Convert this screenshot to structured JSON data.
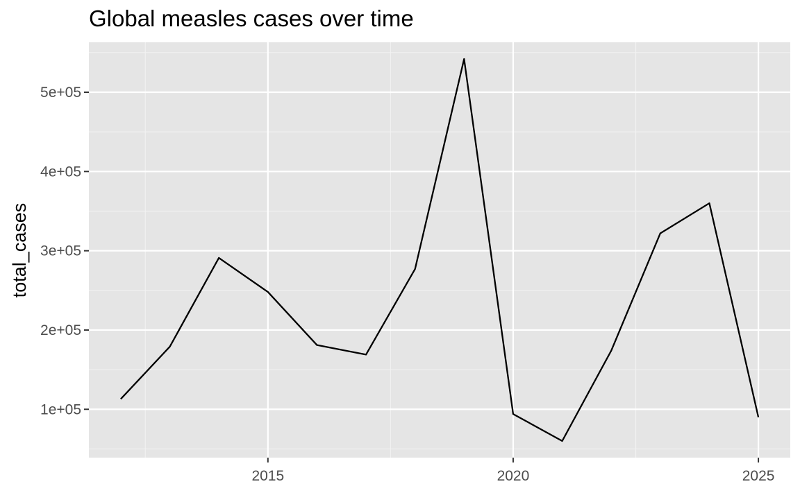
{
  "chart_data": {
    "type": "line",
    "title": "Global measles cases over time",
    "xlabel": "",
    "ylabel": "total_cases",
    "x": [
      2012,
      2013,
      2014,
      2015,
      2016,
      2017,
      2018,
      2019,
      2020,
      2021,
      2022,
      2023,
      2024,
      2025
    ],
    "series": [
      {
        "name": "total_cases",
        "values": [
          113000,
          179000,
          291000,
          248000,
          181000,
          169000,
          277000,
          542000,
          94000,
          60000,
          174000,
          322000,
          360000,
          90000
        ]
      }
    ],
    "xlim": [
      2011.35,
      2025.65
    ],
    "ylim": [
      39000,
      563000
    ],
    "x_ticks": [
      2015,
      2020,
      2025
    ],
    "x_tick_labels": [
      "2015",
      "2020",
      "2025"
    ],
    "y_ticks": [
      100000,
      200000,
      300000,
      400000,
      500000
    ],
    "y_tick_labels": [
      "1e+05",
      "2e+05",
      "3e+05",
      "4e+05",
      "5e+05"
    ],
    "grid": true,
    "legend": "none",
    "colors": {
      "panel_background": "#e5e5e5",
      "grid_major": "#ffffff",
      "grid_minor": "#f2f2f2",
      "line": "#000000",
      "tick_text": "#4d4d4d",
      "tick_mark": "#333333"
    }
  }
}
